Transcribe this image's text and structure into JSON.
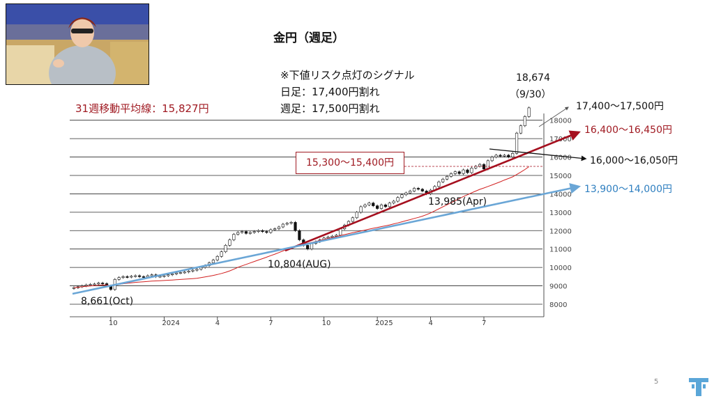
{
  "slide": {
    "title": "金円（週足）",
    "signal_title": "※下値リスク点灯のシグナル",
    "signal_daily": "日足：17,400円割れ",
    "signal_weekly": "週足：17,500円割れ",
    "ma_label": "31週移動平均線：15,827円",
    "latest_value": "18,674",
    "latest_date": "（9/30）",
    "box_label": "15,300～15,400円",
    "target_top": "17,400～17,500円",
    "target_red": "16,400～16,450円",
    "target_black": "16,000～16,050円",
    "target_blue": "13,900～14,000円",
    "low_apr": "13,985(Apr)",
    "low_aug": "10,804(AUG)",
    "low_oct": "8,661(Oct)",
    "page_number": "5"
  },
  "colors": {
    "red_line": "#a50f1e",
    "blue_line": "#6aa6d6",
    "ma_line": "#d22020",
    "dark_red_text": "#a01a22",
    "blue_text": "#2f7fc0"
  },
  "icons": {
    "logo": "stylized-t-logo"
  },
  "chart_data": {
    "type": "candlestick",
    "ylim": [
      7600,
      18700
    ],
    "yticks": [
      "8000",
      "9000",
      "10000",
      "11000",
      "12000",
      "13000",
      "14000",
      "15000",
      "16000",
      "17000",
      "18000"
    ],
    "xticks": [
      {
        "label": "10",
        "week": 9
      },
      {
        "label": "2024",
        "week": 22
      },
      {
        "label": "4",
        "week": 35
      },
      {
        "label": "7",
        "week": 48
      },
      {
        "label": "10",
        "week": 61
      },
      {
        "label": "2025",
        "week": 74
      },
      {
        "label": "4",
        "week": 87
      },
      {
        "label": "7",
        "week": 100
      }
    ],
    "grid": true,
    "close": [
      8900,
      8950,
      9000,
      9050,
      9080,
      9100,
      9150,
      9120,
      9000,
      8800,
      9350,
      9450,
      9500,
      9480,
      9520,
      9550,
      9500,
      9480,
      9550,
      9600,
      9500,
      9520,
      9550,
      9600,
      9650,
      9700,
      9720,
      9750,
      9800,
      9850,
      9900,
      10000,
      10100,
      10250,
      10400,
      10600,
      10850,
      11200,
      11500,
      11800,
      11900,
      11950,
      11850,
      11900,
      11950,
      12000,
      11950,
      11900,
      12050,
      12100,
      12200,
      12350,
      12400,
      12450,
      12000,
      11500,
      11200,
      11000,
      11300,
      11400,
      11500,
      11600,
      11650,
      11700,
      11750,
      12100,
      12300,
      12500,
      12700,
      13000,
      13300,
      13400,
      13500,
      13350,
      13200,
      13400,
      13300,
      13500,
      13600,
      13800,
      13950,
      14050,
      14150,
      14300,
      14250,
      14150,
      14000,
      14200,
      14400,
      14650,
      14800,
      14950,
      15100,
      15200,
      15100,
      15300,
      15150,
      15400,
      15500,
      15600,
      15350,
      15800,
      16000,
      16100,
      16050,
      16100,
      16000,
      16200,
      17300,
      17700,
      18200,
      18674
    ],
    "ma_31w": {
      "name": "31週移動平均線",
      "last": 15827
    }
  }
}
